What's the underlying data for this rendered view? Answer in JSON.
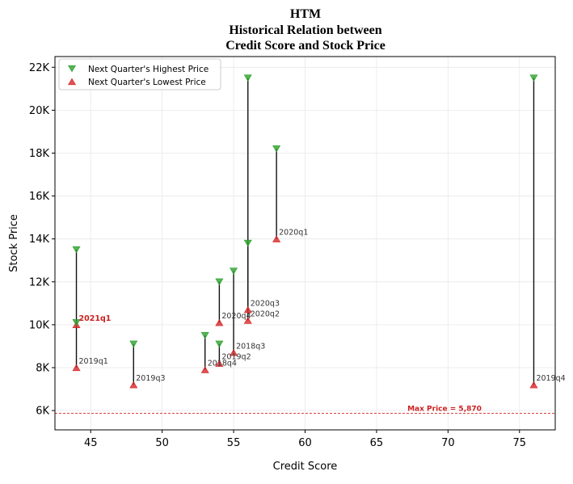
{
  "chart_data": {
    "type": "scatter",
    "title_lines": [
      "HTM",
      "Historical Relation between",
      "Credit Score and Stock Price"
    ],
    "xlabel": "Credit Score",
    "ylabel": "Stock Price",
    "xlim": [
      42.5,
      77.5
    ],
    "ylim": [
      5100,
      22500
    ],
    "x_ticks": [
      45,
      50,
      55,
      60,
      65,
      70,
      75
    ],
    "y_ticks": [
      6000,
      8000,
      10000,
      12000,
      14000,
      16000,
      18000,
      20000,
      22000
    ],
    "y_tick_labels": [
      "6K",
      "8K",
      "10K",
      "12K",
      "14K",
      "16K",
      "18K",
      "20K",
      "22K"
    ],
    "grid": true,
    "legend_position": "top-left",
    "series": [
      {
        "name": "Next Quarter's Highest Price",
        "marker": "triangle-down",
        "color": "#2ca02c"
      },
      {
        "name": "Next Quarter's Lowest Price",
        "marker": "triangle-up",
        "color": "#d62728"
      }
    ],
    "points": [
      {
        "label": "2019q1",
        "x": 44,
        "high": 13500,
        "low": 8000
      },
      {
        "label": "2021q1",
        "x": 44,
        "high": 10100,
        "low": 10000,
        "highlight": true
      },
      {
        "label": "2019q3",
        "x": 48,
        "high": 9100,
        "low": 7200
      },
      {
        "label": "2018q4",
        "x": 53,
        "high": 9500,
        "low": 7900
      },
      {
        "label": "2020q4",
        "x": 54,
        "high": 12000,
        "low": 10100
      },
      {
        "label": "2019q2",
        "x": 54,
        "high": 9100,
        "low": 8200
      },
      {
        "label": "2018q3",
        "x": 55,
        "high": 12500,
        "low": 8700
      },
      {
        "label": "2020q3",
        "x": 56,
        "high": 21500,
        "low": 10700
      },
      {
        "label": "2020q2",
        "x": 56,
        "high": 13800,
        "low": 10200
      },
      {
        "label": "2020q1",
        "x": 58,
        "high": 18200,
        "low": 14000
      },
      {
        "label": "2019q4",
        "x": 76,
        "high": 21500,
        "low": 7200
      }
    ],
    "reference_line": {
      "value": 5870,
      "label": "Max Price = 5,870",
      "color": "#d62728"
    }
  }
}
